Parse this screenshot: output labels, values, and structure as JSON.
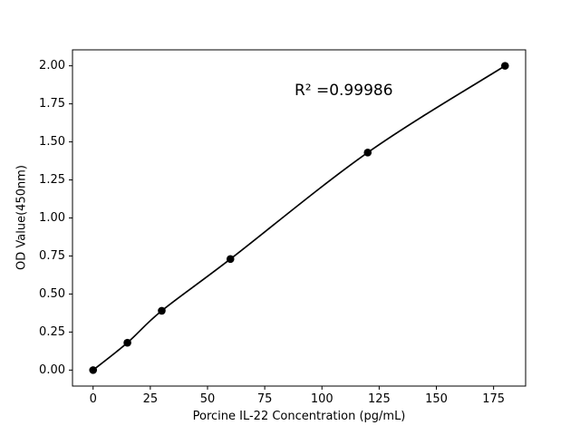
{
  "chart_data": {
    "type": "line",
    "title": "",
    "xlabel": "Porcine IL-22 Concentration (pg/mL)",
    "ylabel": "OD Value(450nm)",
    "x": [
      0,
      15,
      30,
      60,
      120,
      180
    ],
    "y": [
      0.0,
      0.18,
      0.39,
      0.73,
      1.43,
      2.0
    ],
    "xticks": [
      0,
      25,
      50,
      75,
      100,
      125,
      150,
      175
    ],
    "yticks": [
      0.0,
      0.25,
      0.5,
      0.75,
      1.0,
      1.25,
      1.5,
      1.75,
      2.0
    ],
    "ytick_labels": [
      "0.00",
      "0.25",
      "0.50",
      "0.75",
      "1.00",
      "1.25",
      "1.50",
      "1.75",
      "2.00"
    ],
    "xlim": [
      -9,
      189
    ],
    "ylim": [
      -0.105,
      2.105
    ],
    "annotation": "R² =0.99986",
    "annotation_xy": [
      88,
      1.79
    ],
    "line_color": "#000000",
    "marker_color": "#000000",
    "axis_color": "#000000",
    "background": "#ffffff",
    "grid": false,
    "legend": "none"
  }
}
